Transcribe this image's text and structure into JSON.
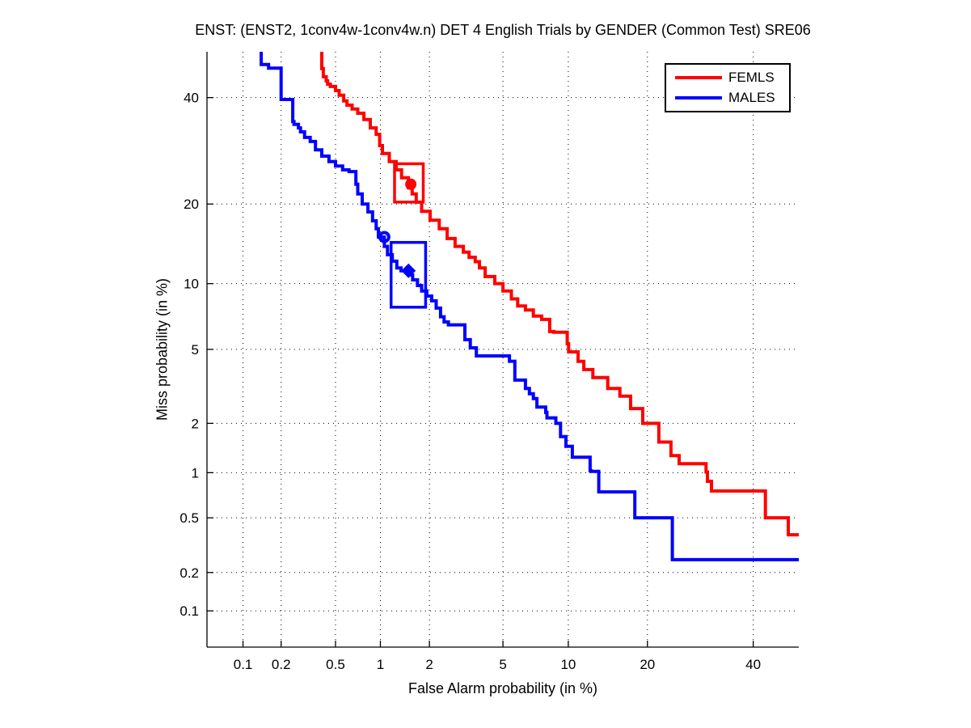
{
  "chart_data": {
    "type": "line",
    "subtype": "DET-curve (step line, probit scale on both axes)",
    "title": "ENST: (ENST2, 1conv4w-1conv4w.n) DET 4 English Trials by GENDER (Common Test) SRE06",
    "xlabel": "False Alarm probability (in %)",
    "ylabel": "Miss probability (in %)",
    "grid": "dotted",
    "xlim_pct": [
      0.05,
      50
    ],
    "ylim_pct": [
      0.05,
      50
    ],
    "xticks_pct": [
      0.1,
      0.2,
      0.5,
      1,
      2,
      5,
      10,
      20,
      40
    ],
    "xtick_labels": [
      "0.1",
      "0.2",
      "0.5",
      "1",
      "2",
      "5",
      "10",
      "20",
      "40"
    ],
    "yticks_pct": [
      0.1,
      0.2,
      0.5,
      1,
      2,
      5,
      10,
      20,
      40
    ],
    "ytick_labels": [
      "0.1",
      "0.2",
      "0.5",
      "1",
      "2",
      "5",
      "10",
      "20",
      "40"
    ],
    "legend": {
      "position": "top-right",
      "entries": [
        "FEMLS",
        "MALES"
      ]
    },
    "series": [
      {
        "name": "FEMLS",
        "color": "#ff0000",
        "points_fa_miss_pct": [
          [
            0.4,
            50
          ],
          [
            0.4,
            48
          ],
          [
            0.41,
            46.3
          ],
          [
            0.43,
            44.5
          ],
          [
            0.44,
            43.6
          ],
          [
            0.46,
            42.9
          ],
          [
            0.5,
            42.4
          ],
          [
            0.53,
            41.5
          ],
          [
            0.57,
            40.5
          ],
          [
            0.6,
            39.3
          ],
          [
            0.65,
            38.4
          ],
          [
            0.71,
            37.6
          ],
          [
            0.78,
            36.7
          ],
          [
            0.86,
            35.4
          ],
          [
            0.94,
            33.7
          ],
          [
            0.99,
            32.4
          ],
          [
            1.03,
            30.2
          ],
          [
            1.14,
            28.7
          ],
          [
            1.26,
            27.2
          ],
          [
            1.36,
            25.7
          ],
          [
            1.5,
            24.3
          ],
          [
            1.58,
            22.6
          ],
          [
            1.67,
            21.6
          ],
          [
            1.8,
            20.3
          ],
          [
            2.02,
            18.9
          ],
          [
            2.28,
            17.6
          ],
          [
            2.53,
            16.4
          ],
          [
            2.8,
            15.1
          ],
          [
            3.11,
            14.1
          ],
          [
            3.34,
            13.4
          ],
          [
            3.6,
            12.8
          ],
          [
            3.79,
            12.3
          ],
          [
            4.06,
            11.6
          ],
          [
            4.55,
            10.7
          ],
          [
            5.0,
            10.0
          ],
          [
            5.5,
            9.3
          ],
          [
            5.9,
            8.6
          ],
          [
            6.43,
            8.0
          ],
          [
            7.0,
            7.67
          ],
          [
            7.64,
            7.2
          ],
          [
            8.3,
            6.95
          ],
          [
            8.66,
            6.1
          ],
          [
            9.9,
            6.05
          ],
          [
            10.03,
            5.33
          ],
          [
            10.99,
            4.86
          ],
          [
            11.6,
            4.35
          ],
          [
            12.61,
            3.95
          ],
          [
            14.41,
            3.59
          ],
          [
            15.99,
            3.14
          ],
          [
            17.49,
            2.85
          ],
          [
            19.28,
            2.43
          ],
          [
            21.83,
            2.0
          ],
          [
            23.87,
            1.55
          ],
          [
            25.29,
            1.28
          ],
          [
            26.02,
            1.14
          ],
          [
            30.3,
            1.14
          ],
          [
            30.57,
            1.01
          ],
          [
            31.37,
            0.88
          ],
          [
            32.17,
            0.76
          ],
          [
            42.63,
            0.76
          ],
          [
            42.92,
            0.5
          ],
          [
            47.67,
            0.5
          ],
          [
            47.97,
            0.38
          ],
          [
            50.0,
            0.38
          ]
        ]
      },
      {
        "name": "MALES",
        "color": "#0000ff",
        "points_fa_miss_pct": [
          [
            0.14,
            50
          ],
          [
            0.14,
            47.2
          ],
          [
            0.16,
            47.2
          ],
          [
            0.16,
            46.4
          ],
          [
            0.2,
            46.4
          ],
          [
            0.2,
            40.6
          ],
          [
            0.21,
            39.6
          ],
          [
            0.245,
            39.6
          ],
          [
            0.25,
            35.0
          ],
          [
            0.27,
            34.4
          ],
          [
            0.28,
            33.7
          ],
          [
            0.3,
            32.9
          ],
          [
            0.33,
            31.8
          ],
          [
            0.36,
            31.0
          ],
          [
            0.4,
            29.4
          ],
          [
            0.45,
            28.2
          ],
          [
            0.5,
            27.2
          ],
          [
            0.56,
            26.4
          ],
          [
            0.62,
            25.7
          ],
          [
            0.69,
            25.4
          ],
          [
            0.71,
            23.2
          ],
          [
            0.76,
            21.6
          ],
          [
            0.83,
            20.0
          ],
          [
            0.89,
            18.8
          ],
          [
            0.94,
            17.5
          ],
          [
            0.97,
            16.4
          ],
          [
            1.06,
            15.3
          ],
          [
            1.11,
            14.1
          ],
          [
            1.19,
            13.1
          ],
          [
            1.27,
            12.35
          ],
          [
            1.35,
            11.6
          ],
          [
            1.5,
            11.3
          ],
          [
            1.59,
            10.86
          ],
          [
            1.7,
            10.37
          ],
          [
            1.8,
            9.82
          ],
          [
            1.93,
            9.3
          ],
          [
            2.06,
            8.85
          ],
          [
            2.19,
            8.43
          ],
          [
            2.32,
            7.83
          ],
          [
            2.43,
            7.15
          ],
          [
            2.57,
            6.77
          ],
          [
            3.17,
            6.56
          ],
          [
            3.39,
            5.58
          ],
          [
            3.65,
            5.09
          ],
          [
            3.68,
            4.64
          ],
          [
            5.38,
            4.64
          ],
          [
            5.42,
            4.36
          ],
          [
            5.72,
            4.36
          ],
          [
            6.43,
            3.48
          ],
          [
            6.71,
            3.14
          ],
          [
            7.0,
            2.94
          ],
          [
            7.27,
            2.76
          ],
          [
            7.97,
            2.48
          ],
          [
            8.07,
            2.31
          ],
          [
            8.84,
            2.15
          ],
          [
            9.26,
            2.0
          ],
          [
            9.77,
            1.67
          ],
          [
            10.4,
            1.46
          ],
          [
            10.65,
            1.25
          ],
          [
            12.3,
            1.25
          ],
          [
            12.4,
            1.03
          ],
          [
            13.3,
            1.02
          ],
          [
            13.4,
            0.75
          ],
          [
            18.1,
            0.75
          ],
          [
            18.3,
            0.5
          ],
          [
            24.1,
            0.5
          ],
          [
            24.35,
            0.25
          ],
          [
            50.0,
            0.25
          ]
        ]
      }
    ],
    "markers": [
      {
        "series": "FEMLS",
        "shape": "rect-open",
        "color": "#ff0000",
        "fa_pct": [
          1.23,
          1.84
        ],
        "miss_pct": [
          20.3,
          26.8
        ]
      },
      {
        "series": "FEMLS",
        "shape": "circle-filled",
        "color": "#ff0000",
        "fa_pct": 1.55,
        "miss_pct": 23.2
      },
      {
        "series": "MALES",
        "shape": "circle-open",
        "color": "#0000ff",
        "fa_pct": 1.06,
        "miss_pct": 15.3
      },
      {
        "series": "MALES",
        "shape": "rect-open",
        "color": "#0000ff",
        "fa_pct": [
          1.17,
          1.9
        ],
        "miss_pct": [
          7.9,
          14.6
        ]
      },
      {
        "series": "MALES",
        "shape": "diamond-filled",
        "color": "#0000ff",
        "fa_pct": 1.5,
        "miss_pct": 11.3
      }
    ],
    "axis_color": "#000000",
    "grid_color": "#000000"
  }
}
